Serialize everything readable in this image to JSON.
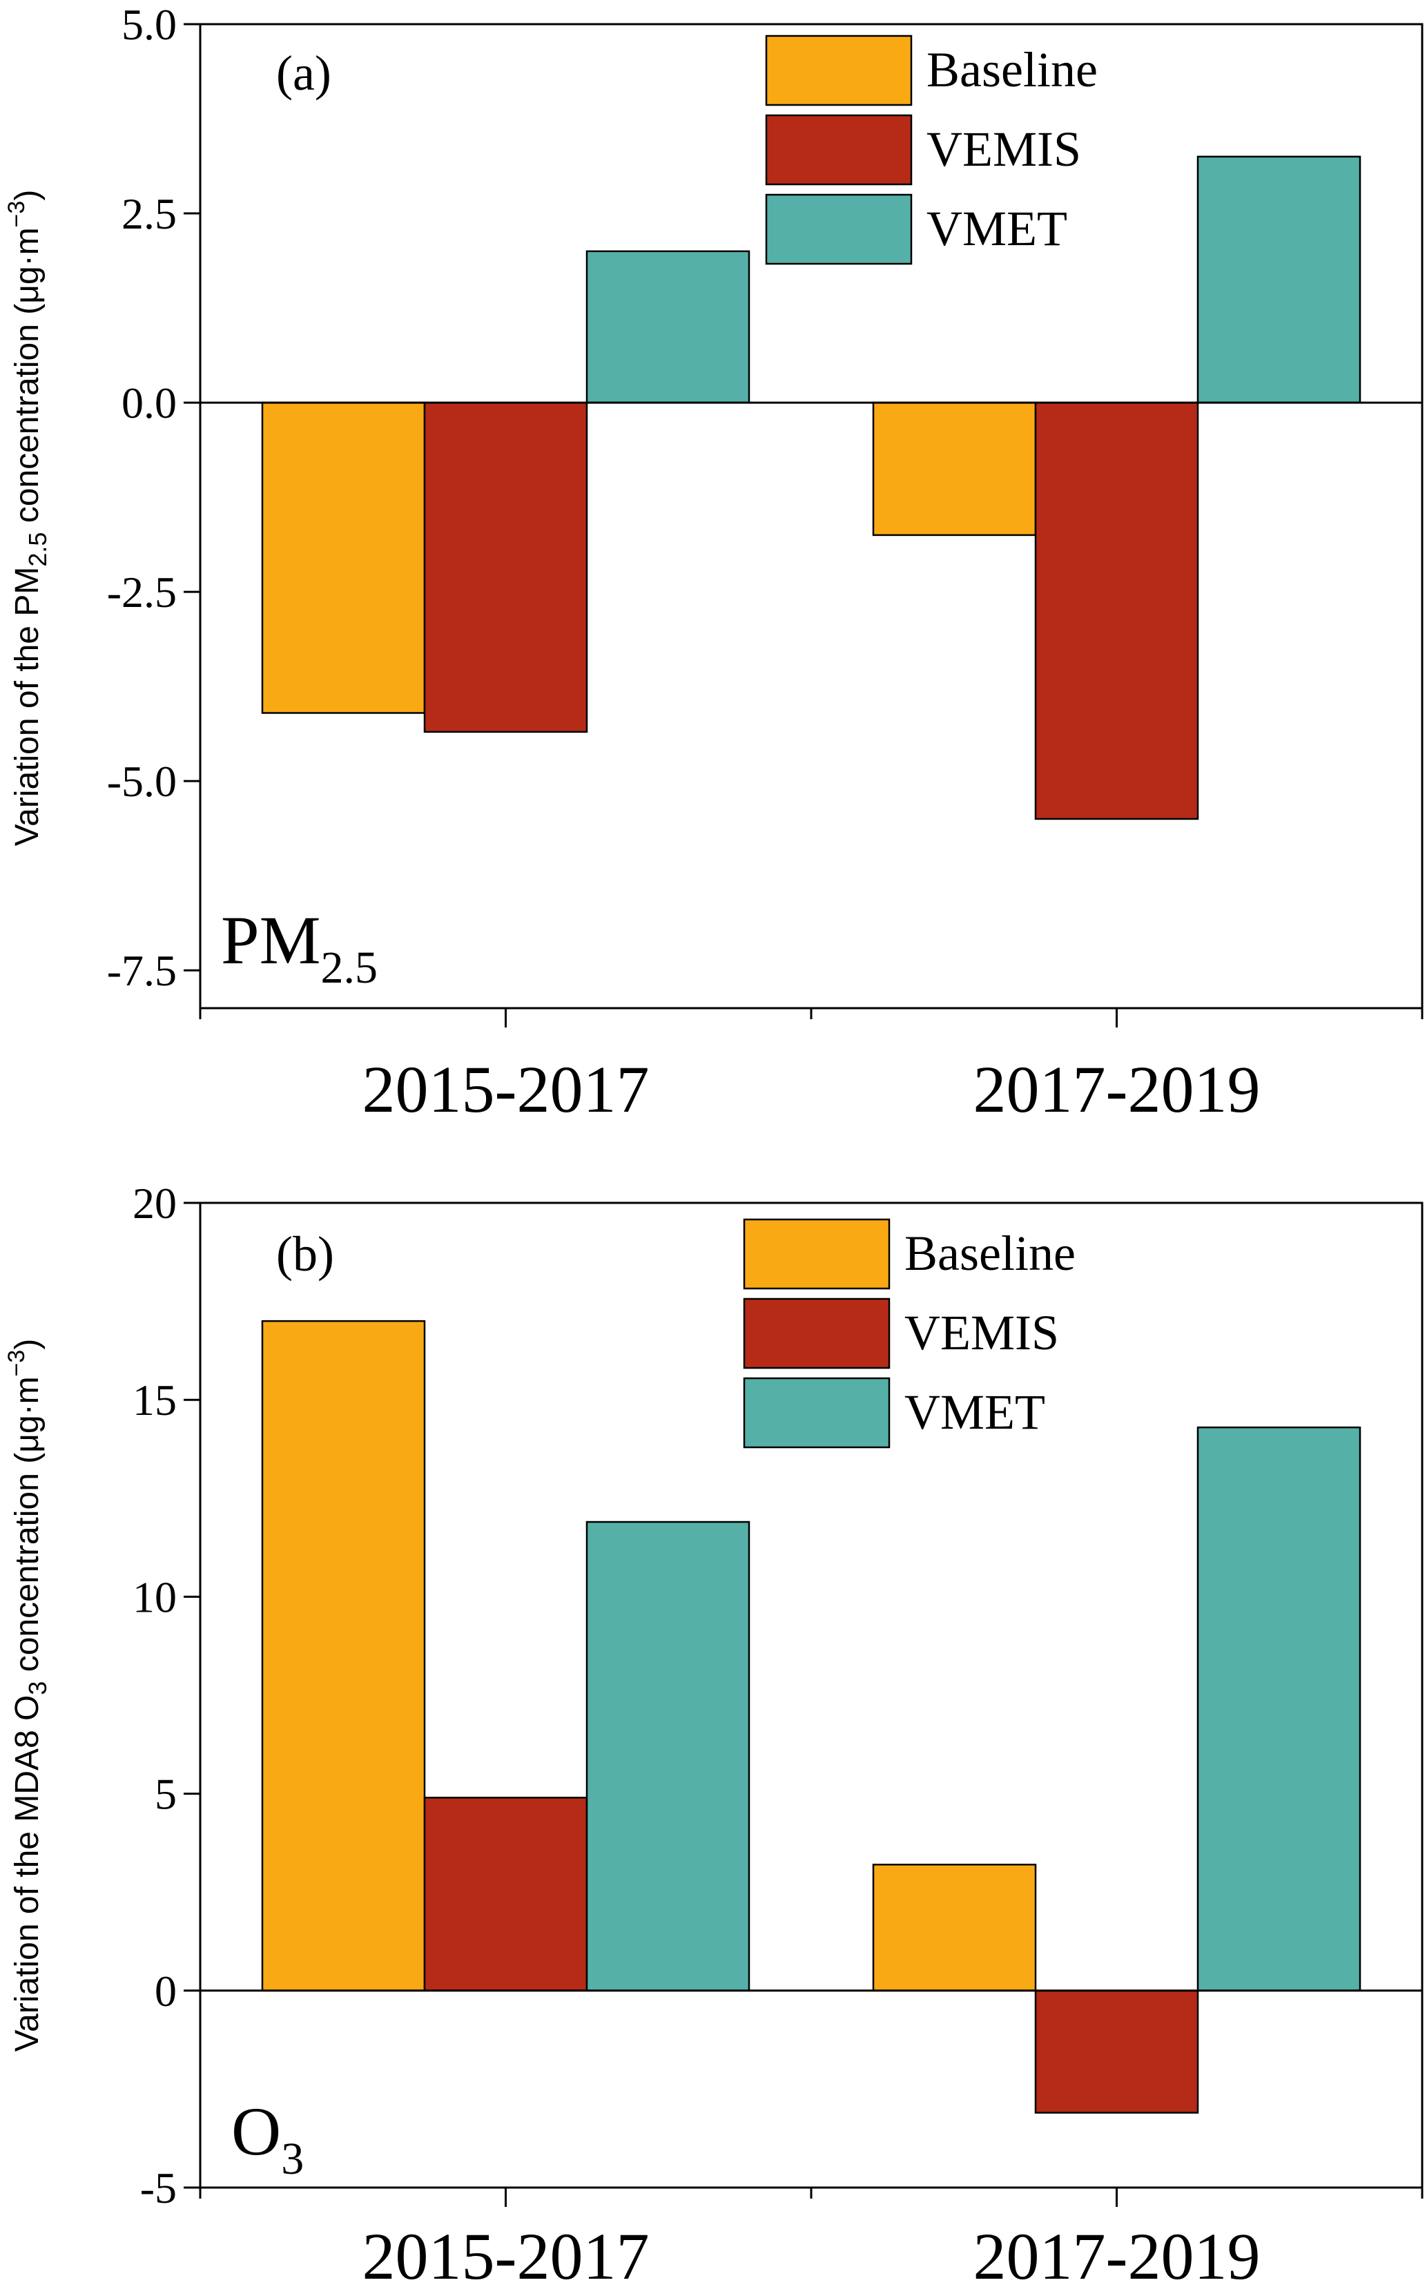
{
  "colors": {
    "Baseline": "#F9A914",
    "VEMIS": "#B62B17",
    "VMET": "#55B0A8"
  },
  "chart_data": [
    {
      "type": "bar",
      "panel": "(a)",
      "species": "PM",
      "species_sub": "2.5",
      "ylabel": "Variation of the PM",
      "ylabel_sub": "2.5",
      "ylabel_tail": " concentration (μg·m",
      "ylabel_sup": "−3",
      "ylabel_end": ")",
      "categories": [
        "2015-2017",
        "2017-2019"
      ],
      "series": [
        {
          "name": "Baseline",
          "values": [
            -4.1,
            -1.75
          ]
        },
        {
          "name": "VEMIS",
          "values": [
            -4.35,
            -5.5
          ]
        },
        {
          "name": "VMET",
          "values": [
            2.0,
            3.25
          ]
        }
      ],
      "ylim": [
        -8,
        5
      ],
      "yticks": [
        "5.0",
        "2.5",
        "0.0",
        "-2.5",
        "-5.0",
        "-7.5"
      ],
      "ytick_values": [
        5,
        2.5,
        0,
        -2.5,
        -5,
        -7.5
      ],
      "legend_position": "top-right"
    },
    {
      "type": "bar",
      "panel": "(b)",
      "species": "O",
      "species_sub": "3",
      "ylabel": "Variation of the MDA8 O",
      "ylabel_sub": "3",
      "ylabel_tail": " concentration (μg·m",
      "ylabel_sup": "−3",
      "ylabel_end": ")",
      "categories": [
        "2015-2017",
        "2017-2019"
      ],
      "series": [
        {
          "name": "Baseline",
          "values": [
            17.0,
            3.2
          ]
        },
        {
          "name": "VEMIS",
          "values": [
            4.9,
            -3.1
          ]
        },
        {
          "name": "VMET",
          "values": [
            11.9,
            14.3
          ]
        }
      ],
      "ylim": [
        -5,
        20
      ],
      "yticks": [
        "20",
        "15",
        "10",
        "5",
        "0",
        "-5"
      ],
      "ytick_values": [
        20,
        15,
        10,
        5,
        0,
        -5
      ],
      "legend_position": "top-right"
    }
  ]
}
